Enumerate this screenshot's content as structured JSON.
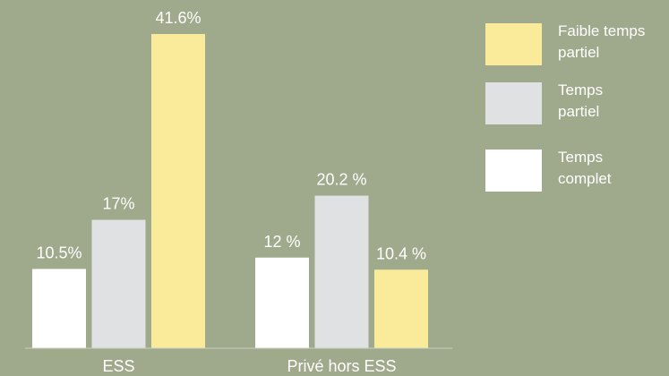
{
  "colors": {
    "background": "#9eaa8b",
    "series": [
      "#ffffff",
      "#e0e1e3",
      "#f9eb99"
    ]
  },
  "chart_data": {
    "type": "bar",
    "title": "",
    "xlabel": "",
    "ylabel": "",
    "ylim": [
      0,
      45
    ],
    "legend_position": "right",
    "categories": [
      "ESS",
      "Privé hors ESS"
    ],
    "series": [
      {
        "name": "Temps complet",
        "values": [
          10.5,
          12
        ],
        "labels": [
          "10.5%",
          "12 %"
        ]
      },
      {
        "name": "Temps partiel",
        "values": [
          17,
          20.2
        ],
        "labels": [
          "17%",
          "20.2 %"
        ]
      },
      {
        "name": "Faible temps partiel",
        "values": [
          41.6,
          10.4
        ],
        "labels": [
          "41.6%",
          "10.4 %"
        ]
      }
    ],
    "legend": [
      {
        "series": 2,
        "lines": [
          "Faible temps",
          "partiel"
        ]
      },
      {
        "series": 1,
        "lines": [
          "Temps",
          "partiel"
        ]
      },
      {
        "series": 0,
        "lines": [
          "Temps",
          "complet"
        ]
      }
    ]
  }
}
